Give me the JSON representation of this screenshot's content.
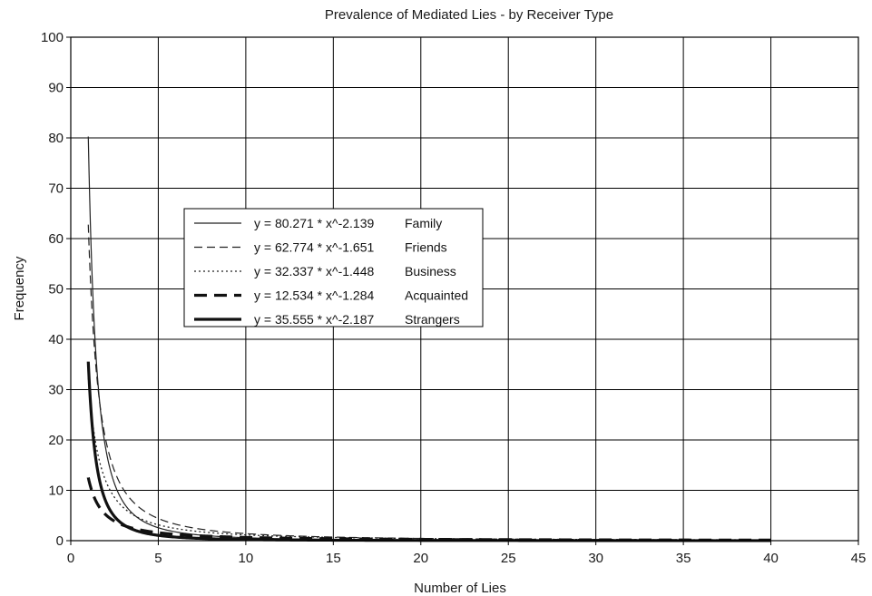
{
  "chart_data": {
    "type": "line",
    "title": "Prevalence of Mediated Lies - by Receiver Type",
    "xlabel": "Number of Lies",
    "ylabel": "Frequency",
    "xlim": [
      0,
      45
    ],
    "ylim": [
      0,
      100
    ],
    "x_ticks": [
      "0",
      "5",
      "10",
      "15",
      "20",
      "25",
      "30",
      "35",
      "40",
      "45"
    ],
    "y_ticks": [
      "0",
      "10",
      "20",
      "30",
      "40",
      "50",
      "60",
      "70",
      "80",
      "90",
      "100"
    ],
    "grid": true,
    "legend_position": "upper-left-inside",
    "series": [
      {
        "name": "Family",
        "equation": "y = 80.271 * x^-2.139",
        "a": 80.271,
        "b": -2.139,
        "style": "thin-solid",
        "x_range": [
          1,
          40
        ]
      },
      {
        "name": "Friends",
        "equation": "y = 62.774 * x^-1.651",
        "a": 62.774,
        "b": -1.651,
        "style": "thin-dashed",
        "x_range": [
          1,
          40
        ]
      },
      {
        "name": "Business",
        "equation": "y = 32.337 * x^-1.448",
        "a": 32.337,
        "b": -1.448,
        "style": "dotted",
        "x_range": [
          1,
          40
        ]
      },
      {
        "name": "Acquainted",
        "equation": "y = 12.534 * x^-1.284",
        "a": 12.534,
        "b": -1.284,
        "style": "thick-dashed",
        "x_range": [
          1,
          40
        ]
      },
      {
        "name": "Strangers",
        "equation": "y = 35.555 * x^-2.187",
        "a": 35.555,
        "b": -2.187,
        "style": "thick-solid",
        "x_range": [
          1,
          40
        ]
      }
    ]
  }
}
